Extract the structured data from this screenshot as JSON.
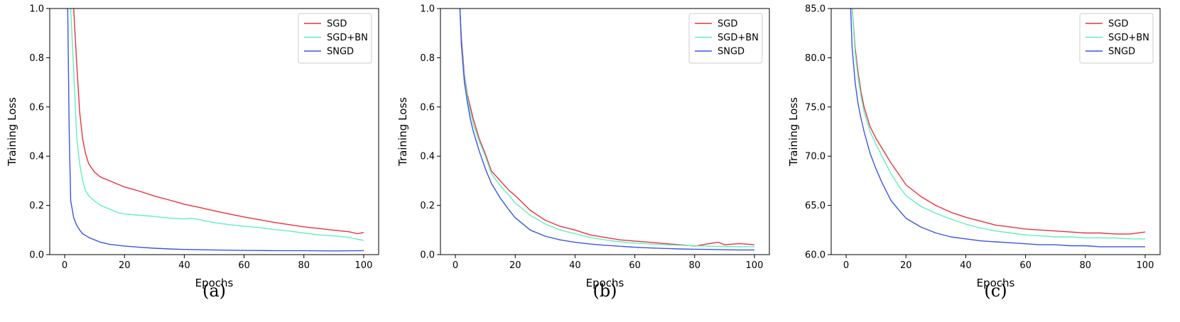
{
  "colors": {
    "SGD": "#e8333f",
    "SGD+BN": "#5ff0be",
    "SNGD": "#3b55e6",
    "frame": "#000000"
  },
  "chart_data": [
    {
      "type": "line",
      "caption": "(a)",
      "xlabel": "Epochs",
      "ylabel": "Training Loss",
      "xlim": [
        -5,
        105
      ],
      "ylim": [
        0.0,
        1.0
      ],
      "xticks": [
        0,
        20,
        40,
        60,
        80,
        100
      ],
      "xtick_labels": [
        "0",
        "20",
        "40",
        "60",
        "80",
        "100"
      ],
      "yticks": [
        0.0,
        0.2,
        0.4,
        0.6,
        0.8,
        1.0
      ],
      "ytick_labels": [
        "0.0",
        "0.2",
        "0.4",
        "0.6",
        "0.8",
        "1.0"
      ],
      "legend": [
        "SGD",
        "SGD+BN",
        "SNGD"
      ],
      "legend_position": "top-right",
      "series": [
        {
          "name": "SGD",
          "x": [
            3,
            4,
            5,
            6,
            7,
            8,
            10,
            12,
            15,
            20,
            25,
            30,
            35,
            40,
            45,
            50,
            55,
            60,
            65,
            70,
            75,
            80,
            85,
            90,
            95,
            98,
            100
          ],
          "values": [
            1.0,
            0.78,
            0.58,
            0.47,
            0.41,
            0.37,
            0.335,
            0.315,
            0.3,
            0.275,
            0.258,
            0.238,
            0.222,
            0.205,
            0.192,
            0.178,
            0.165,
            0.153,
            0.142,
            0.131,
            0.122,
            0.113,
            0.106,
            0.099,
            0.093,
            0.085,
            0.09
          ]
        },
        {
          "name": "SGD+BN",
          "x": [
            2,
            3,
            4,
            5,
            6,
            7,
            8,
            10,
            12,
            15,
            18,
            20,
            25,
            30,
            35,
            40,
            42,
            45,
            50,
            55,
            60,
            65,
            70,
            75,
            80,
            85,
            90,
            95,
            98,
            100
          ],
          "values": [
            1.0,
            0.75,
            0.48,
            0.37,
            0.3,
            0.26,
            0.24,
            0.218,
            0.2,
            0.185,
            0.17,
            0.165,
            0.16,
            0.155,
            0.148,
            0.145,
            0.148,
            0.142,
            0.13,
            0.122,
            0.115,
            0.11,
            0.102,
            0.096,
            0.088,
            0.08,
            0.076,
            0.07,
            0.062,
            0.058
          ]
        },
        {
          "name": "SNGD",
          "x": [
            1,
            1.5,
            2,
            3,
            4,
            5,
            6,
            8,
            10,
            12,
            15,
            20,
            25,
            30,
            35,
            40,
            50,
            60,
            70,
            80,
            90,
            100
          ],
          "values": [
            1.0,
            0.5,
            0.22,
            0.15,
            0.12,
            0.1,
            0.085,
            0.07,
            0.06,
            0.05,
            0.042,
            0.035,
            0.03,
            0.026,
            0.023,
            0.021,
            0.019,
            0.017,
            0.016,
            0.016,
            0.015,
            0.016
          ]
        }
      ]
    },
    {
      "type": "line",
      "caption": "(b)",
      "xlabel": "Epochs",
      "ylabel": "Training Loss",
      "xlim": [
        -5,
        105
      ],
      "ylim": [
        0.0,
        1.0
      ],
      "xticks": [
        0,
        20,
        40,
        60,
        80,
        100
      ],
      "xtick_labels": [
        "0",
        "20",
        "40",
        "60",
        "80",
        "100"
      ],
      "yticks": [
        0.0,
        0.2,
        0.4,
        0.6,
        0.8,
        1.0
      ],
      "ytick_labels": [
        "0.0",
        "0.2",
        "0.4",
        "0.6",
        "0.8",
        "1.0"
      ],
      "legend": [
        "SGD",
        "SGD+BN",
        "SNGD"
      ],
      "legend_position": "top-right",
      "series": [
        {
          "name": "SGD",
          "x": [
            1.5,
            2,
            3,
            4,
            5,
            6,
            8,
            10,
            12,
            15,
            18,
            20,
            25,
            30,
            35,
            40,
            45,
            50,
            55,
            60,
            65,
            70,
            75,
            80,
            85,
            88,
            90,
            95,
            100
          ],
          "values": [
            1.0,
            0.88,
            0.73,
            0.65,
            0.6,
            0.55,
            0.47,
            0.41,
            0.34,
            0.3,
            0.26,
            0.24,
            0.18,
            0.14,
            0.115,
            0.1,
            0.08,
            0.07,
            0.06,
            0.055,
            0.05,
            0.045,
            0.04,
            0.035,
            0.045,
            0.05,
            0.04,
            0.045,
            0.04
          ]
        },
        {
          "name": "SGD+BN",
          "x": [
            1.5,
            2,
            3,
            4,
            5,
            6,
            8,
            10,
            12,
            15,
            18,
            20,
            25,
            30,
            35,
            40,
            45,
            50,
            55,
            60,
            65,
            70,
            75,
            80,
            85,
            90,
            95,
            100
          ],
          "values": [
            1.0,
            0.86,
            0.72,
            0.64,
            0.58,
            0.53,
            0.46,
            0.4,
            0.33,
            0.28,
            0.24,
            0.21,
            0.16,
            0.125,
            0.1,
            0.085,
            0.07,
            0.06,
            0.052,
            0.047,
            0.043,
            0.04,
            0.038,
            0.036,
            0.034,
            0.033,
            0.032,
            0.032
          ]
        },
        {
          "name": "SNGD",
          "x": [
            1.5,
            2,
            3,
            4,
            5,
            6,
            8,
            10,
            12,
            15,
            18,
            20,
            25,
            30,
            35,
            40,
            45,
            50,
            55,
            60,
            65,
            70,
            75,
            80,
            85,
            90,
            95,
            100
          ],
          "values": [
            1.0,
            0.85,
            0.7,
            0.62,
            0.55,
            0.5,
            0.42,
            0.35,
            0.29,
            0.23,
            0.18,
            0.15,
            0.1,
            0.075,
            0.06,
            0.05,
            0.043,
            0.038,
            0.034,
            0.03,
            0.027,
            0.025,
            0.023,
            0.022,
            0.021,
            0.02,
            0.019,
            0.019
          ]
        }
      ]
    },
    {
      "type": "line",
      "caption": "(c)",
      "xlabel": "Epochs",
      "ylabel": "Training Loss",
      "xlim": [
        -5,
        105
      ],
      "ylim": [
        60.0,
        85.0
      ],
      "xticks": [
        0,
        20,
        40,
        60,
        80,
        100
      ],
      "xtick_labels": [
        "0",
        "20",
        "40",
        "60",
        "80",
        "100"
      ],
      "yticks": [
        60.0,
        65.0,
        70.0,
        75.0,
        80.0,
        85.0
      ],
      "ytick_labels": [
        "60.0",
        "65.0",
        "70.0",
        "75.0",
        "80.0",
        "85.0"
      ],
      "legend": [
        "SGD",
        "SGD+BN",
        "SNGD"
      ],
      "legend_position": "top-right",
      "series": [
        {
          "name": "SGD",
          "x": [
            2,
            3,
            4,
            5,
            6,
            8,
            10,
            12,
            15,
            18,
            20,
            25,
            30,
            35,
            40,
            45,
            50,
            55,
            60,
            65,
            70,
            75,
            80,
            85,
            90,
            95,
            100
          ],
          "values": [
            85.0,
            81.0,
            78.5,
            76.5,
            75.0,
            73.0,
            71.8,
            70.8,
            69.3,
            68.0,
            67.1,
            65.9,
            65.0,
            64.3,
            63.8,
            63.4,
            63.0,
            62.8,
            62.6,
            62.5,
            62.4,
            62.3,
            62.2,
            62.2,
            62.1,
            62.1,
            62.3
          ]
        },
        {
          "name": "SGD+BN",
          "x": [
            2,
            3,
            4,
            5,
            6,
            8,
            10,
            12,
            15,
            18,
            20,
            25,
            30,
            35,
            40,
            45,
            50,
            55,
            60,
            65,
            70,
            75,
            80,
            85,
            90,
            95,
            100
          ],
          "values": [
            85.0,
            80.5,
            78.0,
            76.0,
            74.5,
            72.5,
            71.2,
            70.0,
            68.2,
            66.8,
            66.0,
            64.9,
            64.2,
            63.6,
            63.1,
            62.7,
            62.4,
            62.2,
            62.0,
            61.9,
            61.8,
            61.8,
            61.7,
            61.7,
            61.7,
            61.6,
            61.6
          ]
        },
        {
          "name": "SNGD",
          "x": [
            1.5,
            2,
            3,
            4,
            5,
            6,
            8,
            10,
            12,
            15,
            18,
            20,
            25,
            30,
            35,
            40,
            45,
            50,
            55,
            60,
            65,
            70,
            75,
            80,
            85,
            90,
            95,
            100
          ],
          "values": [
            85.0,
            81.0,
            77.5,
            75.3,
            73.8,
            72.5,
            70.3,
            68.7,
            67.3,
            65.5,
            64.4,
            63.7,
            62.8,
            62.2,
            61.8,
            61.6,
            61.4,
            61.3,
            61.2,
            61.1,
            61.0,
            61.0,
            60.9,
            60.9,
            60.8,
            60.8,
            60.8,
            60.8
          ]
        }
      ]
    }
  ]
}
